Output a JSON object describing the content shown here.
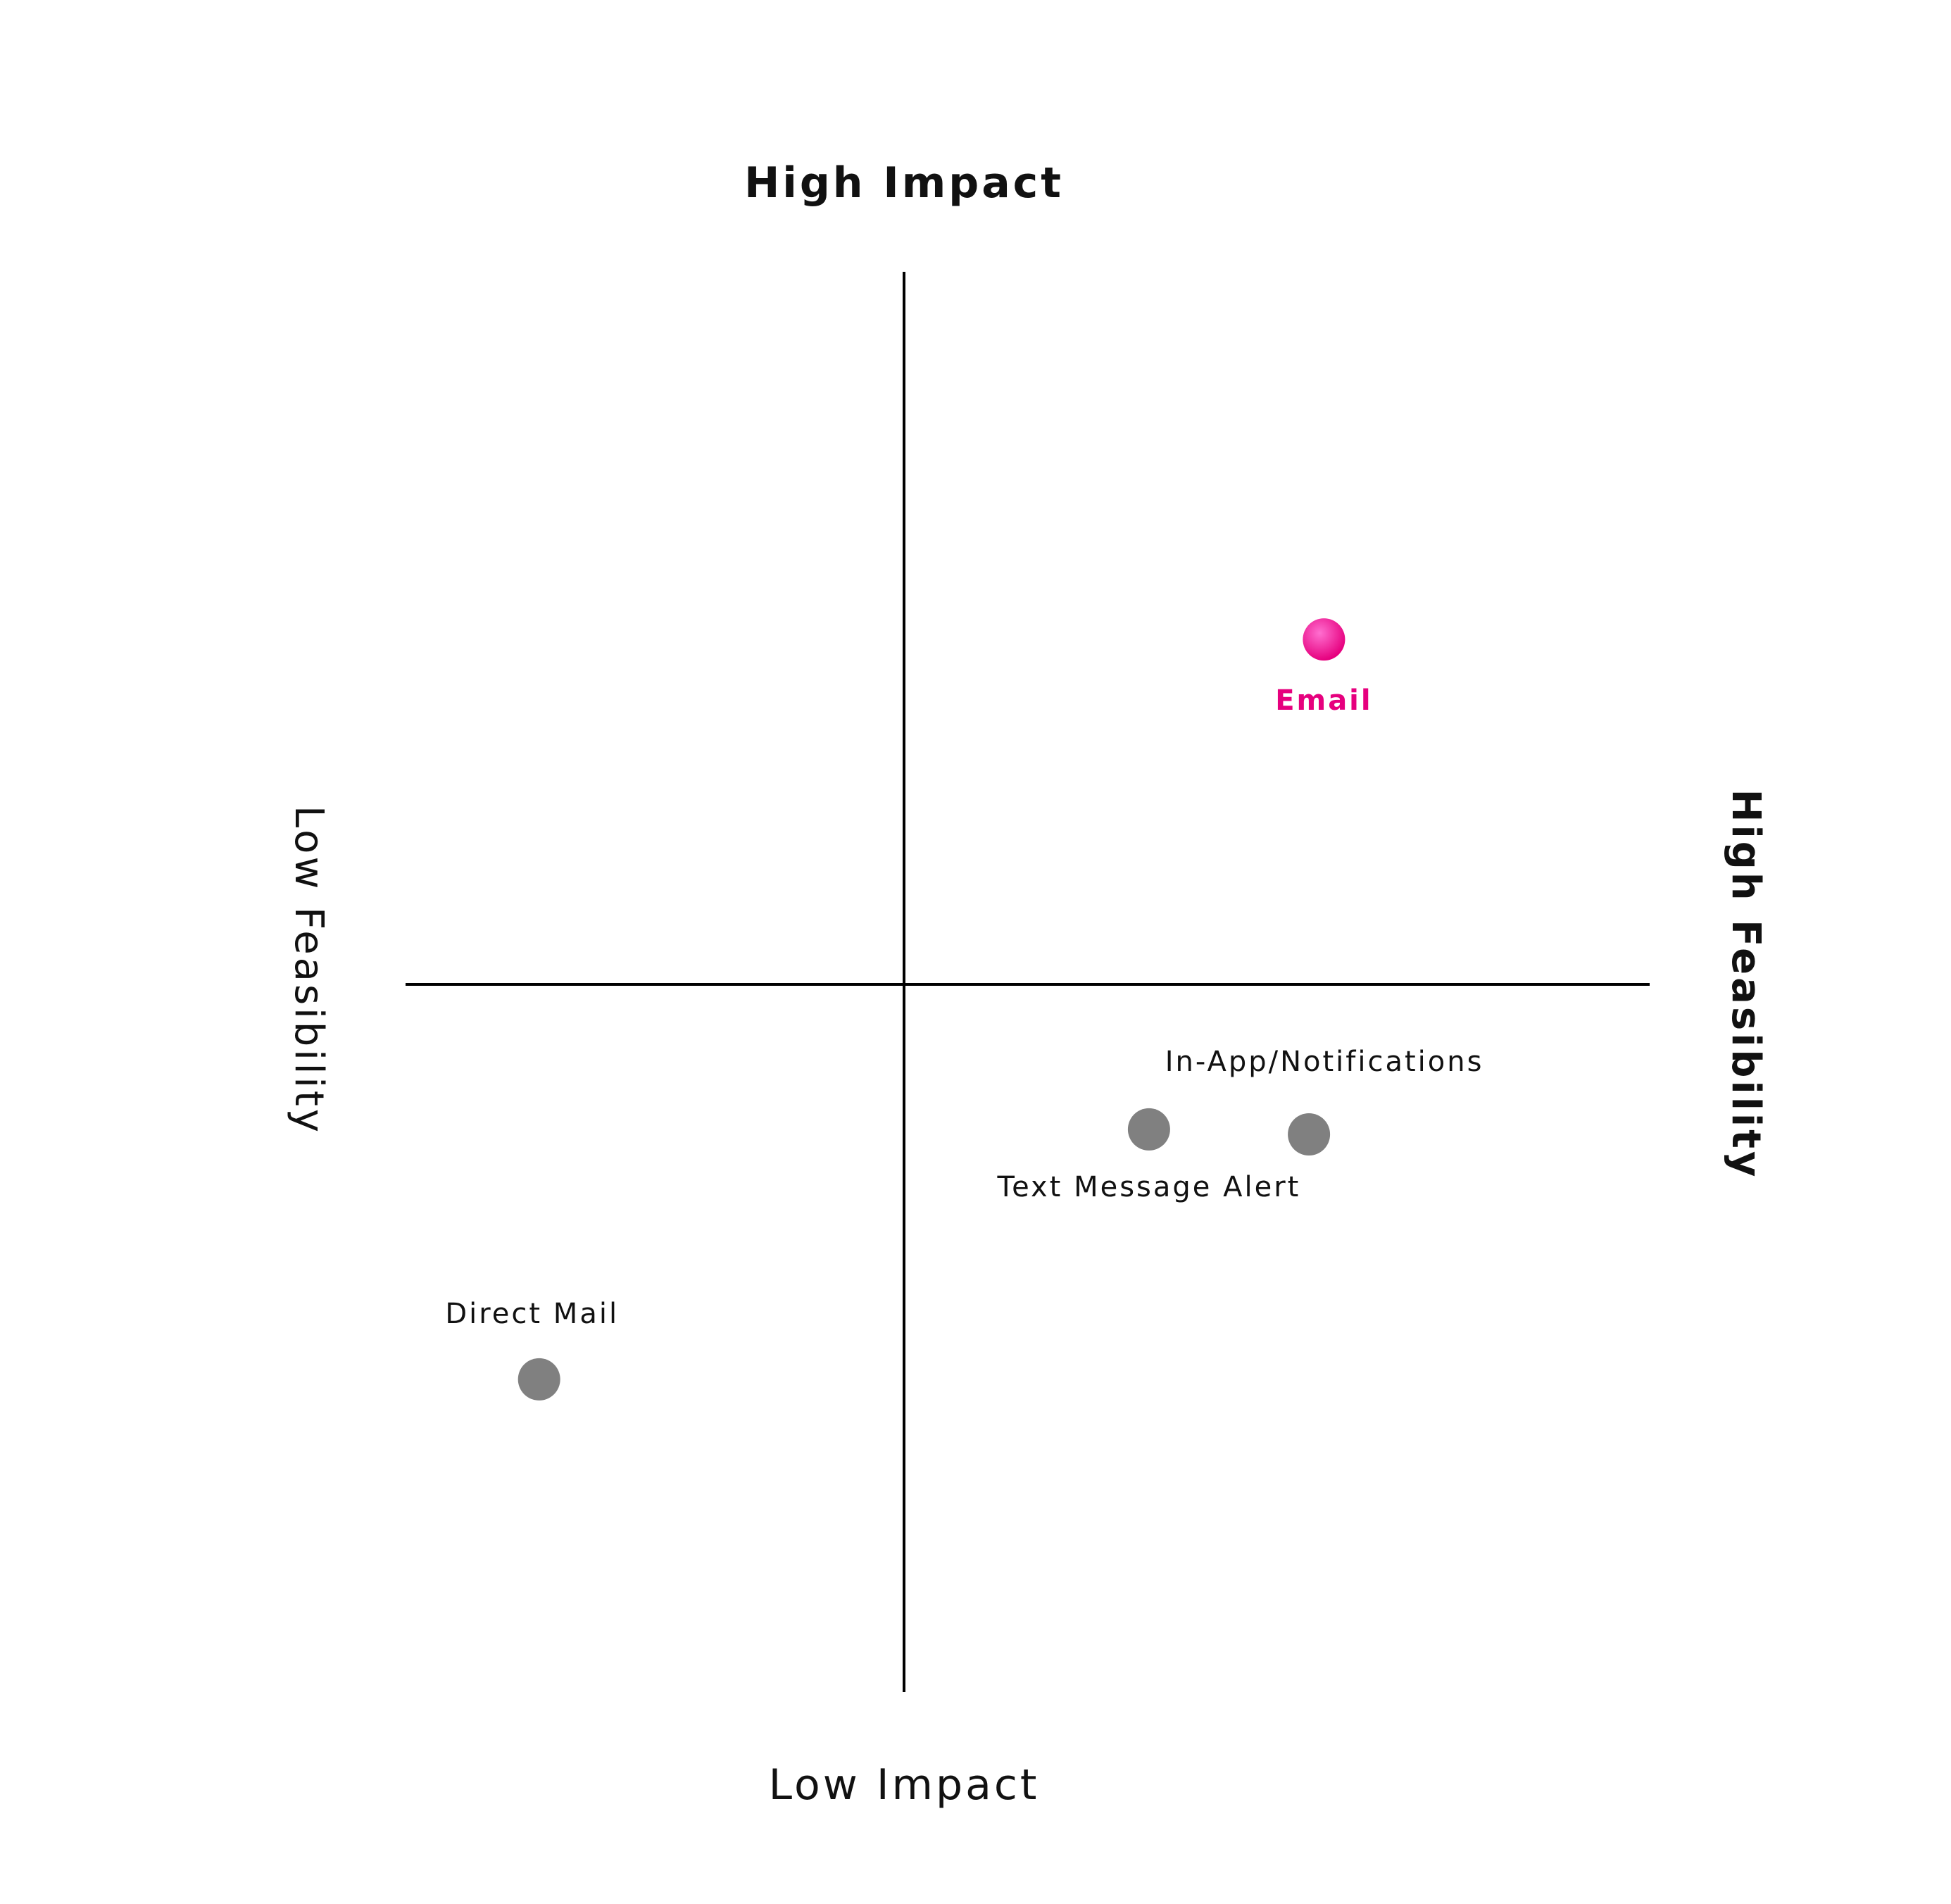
{
  "chart_data": {
    "type": "scatter",
    "title": "",
    "axes": {
      "top_label": "High Impact",
      "bottom_label": "Low Impact",
      "left_label": "Low Feasibility",
      "right_label": "High Feasibility"
    },
    "xlim": [
      -1,
      1
    ],
    "ylim": [
      -1,
      1
    ],
    "grid": false,
    "points": [
      {
        "label": "Email",
        "x": 0.84,
        "y": 0.69,
        "color": "#e6007e",
        "highlight": true
      },
      {
        "label": "In-App/Notifications",
        "x": 0.81,
        "y": -0.3,
        "color": "#808080",
        "highlight": false
      },
      {
        "label": "Text Message Alert",
        "x": 0.49,
        "y": -0.29,
        "color": "#808080",
        "highlight": false
      },
      {
        "label": "Direct Mail",
        "x": -0.73,
        "y": -0.79,
        "color": "#808080",
        "highlight": false
      }
    ]
  }
}
